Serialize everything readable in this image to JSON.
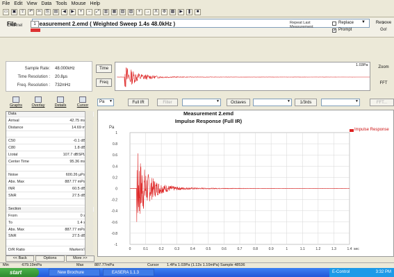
{
  "menu": [
    "File",
    "Edit",
    "View",
    "Data",
    "Tools",
    "Mouse",
    "Help"
  ],
  "toolbar_icons": [
    "open-icon",
    "save-icon",
    "export-icon",
    "undo-icon",
    "cut-icon",
    "copy-icon",
    "paste-icon",
    "arrow-left-icon",
    "arrow-right-icon",
    "zoom-in-icon",
    "zoom-out-icon",
    "fit-icon",
    "bars-icon",
    "grid-icon",
    "table-icon",
    "chart-icon",
    "plus-icon",
    "arrow-icon",
    "lambda-icon",
    "settings-icon",
    "db-icon",
    "play-icon",
    "pause-icon",
    "stop-icon"
  ],
  "filebar": {
    "file_label": "File",
    "title": "Measurement 2.emd ( Weighted Sweep 1.4s 48.0kHz )",
    "remove_label": "Remove",
    "channel_label": "Channel",
    "channel_value": "1",
    "repeat_label": "Repeat Last Measurement",
    "replace_label": "Replace",
    "prompt_label": "Prompt",
    "go_label": "Go!"
  },
  "info": [
    {
      "key": "Sample Rate:",
      "value": "48.000kHz"
    },
    {
      "key": "Time Resolution :",
      "value": "20.8µs"
    },
    {
      "key": "Freq. Resolution :",
      "value": "732mHz"
    }
  ],
  "overview": {
    "time_label": "Time",
    "freq_label": "Freq",
    "readout": "1.03Pa",
    "zoom_label": "Zoom",
    "fft_label": "FFT"
  },
  "tabs": [
    "Graphs",
    "Overlay",
    "Details",
    "Cursor"
  ],
  "side_table": [
    {
      "k": "Data",
      "v": "",
      "hdr": true
    },
    {
      "k": "Arrival",
      "v": "42.75 ms"
    },
    {
      "k": "Distance",
      "v": "14.69 m"
    },
    {
      "k": "",
      "v": ""
    },
    {
      "k": "C50",
      "v": "-0.1 dB"
    },
    {
      "k": "C80",
      "v": "1.8 dB"
    },
    {
      "k": "Ltotal",
      "v": "107.7 dBSPL"
    },
    {
      "k": "Center Time",
      "v": "95.36 ms"
    },
    {
      "k": "",
      "v": ""
    },
    {
      "k": "Noise",
      "v": "600.26 µPa"
    },
    {
      "k": "Abs. Max",
      "v": "887.77 mPa"
    },
    {
      "k": "INR",
      "v": "60.5 dB"
    },
    {
      "k": "SNR",
      "v": "27.5 dB"
    },
    {
      "k": "",
      "v": ""
    },
    {
      "k": "Section",
      "v": "",
      "hdr": true
    },
    {
      "k": "From",
      "v": "0 s"
    },
    {
      "k": "To",
      "v": "1.4 s"
    },
    {
      "k": "Abs. Max",
      "v": "887.77 mPa"
    },
    {
      "k": "SNR",
      "v": "27.5 dB"
    },
    {
      "k": "",
      "v": ""
    },
    {
      "k": "D/R Ratio",
      "v": "Markers?"
    }
  ],
  "side_buttons": [
    "<< Back",
    "Options",
    "More >>"
  ],
  "controls": {
    "unit": "Pa",
    "full_ir": "Full IR",
    "filter": "Filter",
    "octaves": "Octaves",
    "resolution": "1/3rds",
    "fft_btn": "FFT..."
  },
  "chart_data": {
    "type": "line",
    "title": "Measurement 2.emd",
    "subtitle": "Impulse Response (Full IR)",
    "xlabel": "sec",
    "ylabel": "Pa",
    "xlim": [
      0,
      1.4
    ],
    "ylim": [
      -1,
      1
    ],
    "x_ticks": [
      "0",
      "0.1",
      "0.2",
      "0.3",
      "0.4",
      "0.5",
      "0.6",
      "0.7",
      "0.8",
      "0.9",
      "1",
      "1.1",
      "1.2",
      "1.3",
      "1.4"
    ],
    "y_ticks": [
      "1",
      "0.8",
      "0.6",
      "0.4",
      "0.2",
      "0",
      "-0.2",
      "-0.4",
      "-0.6",
      "-0.8",
      "-1"
    ],
    "grid": true,
    "legend": "top-right",
    "series": [
      {
        "name": "Impulse Response",
        "color": "#dd2222",
        "arrival": 0.043,
        "peak": 0.89,
        "decay_end": 0.8
      }
    ]
  },
  "status": {
    "min_label": "Min",
    "min_value": "-679.19mPa",
    "max_label": "Max",
    "max_value": "887.77mPa",
    "cursor_label": "Cursor",
    "cursor_value": "1.4Pa 1.03Pa (1.12s 1.10mPa) Sample 48536"
  },
  "taskbar": {
    "start": "start",
    "tasks": [
      "New Brochure",
      "EASERA 1.1.3"
    ],
    "tray_text": "E-Control",
    "clock": "3:32 PM"
  }
}
